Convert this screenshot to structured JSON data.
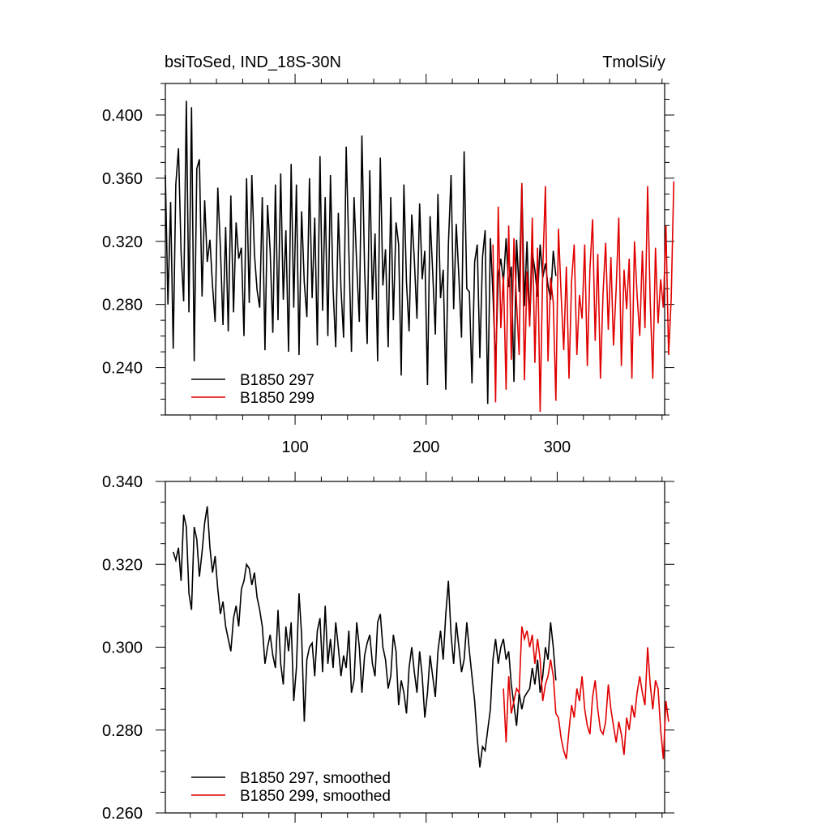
{
  "chart_data": [
    {
      "type": "line",
      "title": "bsiToSed, IND_18S-30N",
      "units_label": "TmolSi/y",
      "xlabel": "",
      "ylabel": "",
      "xlim": [
        1,
        382
      ],
      "ylim": [
        0.21,
        0.42
      ],
      "xticks": [
        100,
        200,
        300
      ],
      "yticks": [
        0.24,
        0.28,
        0.32,
        0.36,
        0.4
      ],
      "ytick_labels": [
        "0.240",
        "0.280",
        "0.320",
        "0.360",
        "0.400"
      ],
      "xtick_labels": [
        "100",
        "200",
        "300"
      ],
      "legend_position": "bottom-left",
      "series": [
        {
          "name": "B1850 297",
          "color": "#000000",
          "x_start": 1,
          "x_step": 2,
          "values": [
            0.362,
            0.28,
            0.345,
            0.252,
            0.356,
            0.379,
            0.313,
            0.282,
            0.409,
            0.275,
            0.405,
            0.244,
            0.366,
            0.372,
            0.285,
            0.346,
            0.307,
            0.321,
            0.292,
            0.269,
            0.354,
            0.316,
            0.267,
            0.329,
            0.263,
            0.349,
            0.275,
            0.332,
            0.309,
            0.316,
            0.26,
            0.36,
            0.281,
            0.362,
            0.312,
            0.289,
            0.278,
            0.348,
            0.251,
            0.343,
            0.314,
            0.262,
            0.356,
            0.27,
            0.363,
            0.283,
            0.327,
            0.25,
            0.369,
            0.278,
            0.356,
            0.248,
            0.339,
            0.294,
            0.272,
            0.36,
            0.284,
            0.335,
            0.254,
            0.374,
            0.276,
            0.348,
            0.26,
            0.362,
            0.289,
            0.253,
            0.338,
            0.29,
            0.259,
            0.38,
            0.314,
            0.25,
            0.348,
            0.305,
            0.269,
            0.387,
            0.303,
            0.255,
            0.365,
            0.283,
            0.325,
            0.244,
            0.373,
            0.292,
            0.315,
            0.253,
            0.348,
            0.27,
            0.332,
            0.318,
            0.235,
            0.356,
            0.294,
            0.263,
            0.337,
            0.308,
            0.271,
            0.344,
            0.296,
            0.314,
            0.229,
            0.336,
            0.301,
            0.261,
            0.35,
            0.284,
            0.302,
            0.226,
            0.318,
            0.362,
            0.277,
            0.331,
            0.297,
            0.259,
            0.377,
            0.29,
            0.288,
            0.23,
            0.307,
            0.318,
            0.246,
            0.31,
            0.327,
            0.217,
            0.322,
            0.286,
            0.241,
            0.298,
            0.309,
            0.294,
            0.322,
            0.291,
            0.304,
            0.231,
            0.321,
            0.288,
            0.356,
            0.279,
            0.32,
            0.268,
            0.313,
            0.302,
            0.285,
            0.318,
            0.297,
            0.306,
            0.292,
            0.283,
            0.314,
            0.298
          ]
        },
        {
          "name": "B1850 299",
          "color": "#e00000",
          "x_start": 251,
          "x_step": 2,
          "values": [
            0.318,
            0.218,
            0.342,
            0.265,
            0.298,
            0.226,
            0.33,
            0.245,
            0.322,
            0.281,
            0.248,
            0.357,
            0.232,
            0.301,
            0.266,
            0.335,
            0.243,
            0.316,
            0.212,
            0.302,
            0.355,
            0.244,
            0.297,
            0.281,
            0.219,
            0.328,
            0.286,
            0.251,
            0.304,
            0.233,
            0.295,
            0.318,
            0.248,
            0.286,
            0.271,
            0.318,
            0.241,
            0.302,
            0.334,
            0.257,
            0.312,
            0.233,
            0.287,
            0.319,
            0.264,
            0.31,
            0.254,
            0.29,
            0.335,
            0.241,
            0.302,
            0.277,
            0.309,
            0.233,
            0.32,
            0.286,
            0.26,
            0.314,
            0.265,
            0.355,
            0.282,
            0.233,
            0.316,
            0.268,
            0.296,
            0.278,
            0.33,
            0.248,
            0.284,
            0.358
          ]
        }
      ]
    },
    {
      "type": "line",
      "title": "",
      "xlabel": "",
      "ylabel": "",
      "xlim": [
        1,
        382
      ],
      "ylim": [
        0.26,
        0.34
      ],
      "xticks": [
        100,
        200,
        300
      ],
      "yticks": [
        0.26,
        0.28,
        0.3,
        0.32,
        0.34
      ],
      "ytick_labels": [
        "0.260",
        "0.280",
        "0.300",
        "0.320",
        "0.340"
      ],
      "legend_position": "bottom-left",
      "series": [
        {
          "name": "B1850 297, smoothed",
          "color": "#000000",
          "x_start": 7,
          "x_step": 2,
          "values": [
            0.323,
            0.321,
            0.324,
            0.316,
            0.332,
            0.329,
            0.313,
            0.309,
            0.329,
            0.326,
            0.317,
            0.323,
            0.33,
            0.334,
            0.324,
            0.318,
            0.322,
            0.314,
            0.308,
            0.311,
            0.305,
            0.302,
            0.299,
            0.307,
            0.31,
            0.305,
            0.314,
            0.316,
            0.32,
            0.319,
            0.315,
            0.318,
            0.312,
            0.309,
            0.305,
            0.296,
            0.3,
            0.303,
            0.298,
            0.295,
            0.309,
            0.296,
            0.291,
            0.305,
            0.299,
            0.306,
            0.287,
            0.295,
            0.313,
            0.303,
            0.282,
            0.297,
            0.3,
            0.301,
            0.293,
            0.304,
            0.307,
            0.294,
            0.31,
            0.296,
            0.302,
            0.295,
            0.306,
            0.3,
            0.293,
            0.298,
            0.295,
            0.304,
            0.289,
            0.292,
            0.306,
            0.3,
            0.289,
            0.298,
            0.301,
            0.303,
            0.296,
            0.293,
            0.306,
            0.308,
            0.3,
            0.297,
            0.29,
            0.293,
            0.303,
            0.299,
            0.286,
            0.292,
            0.289,
            0.284,
            0.295,
            0.3,
            0.294,
            0.289,
            0.299,
            0.293,
            0.283,
            0.289,
            0.298,
            0.293,
            0.288,
            0.299,
            0.304,
            0.297,
            0.308,
            0.316,
            0.303,
            0.296,
            0.306,
            0.3,
            0.294,
            0.297,
            0.306,
            0.299,
            0.293,
            0.287,
            0.278,
            0.271,
            0.276,
            0.275,
            0.28,
            0.285,
            0.297,
            0.302,
            0.296,
            0.3,
            0.302,
            0.297,
            0.299,
            0.291,
            0.286,
            0.281,
            0.289,
            0.285,
            0.288,
            0.289,
            0.29,
            0.295,
            0.291,
            0.297,
            0.289,
            0.293,
            0.3,
            0.297,
            0.306,
            0.3,
            0.292
          ]
        },
        {
          "name": "B1850 299, smoothed",
          "color": "#e00000",
          "x_start": 259,
          "x_step": 2,
          "values": [
            0.29,
            0.277,
            0.293,
            0.284,
            0.287,
            0.29,
            0.289,
            0.305,
            0.302,
            0.304,
            0.3,
            0.303,
            0.296,
            0.302,
            0.297,
            0.287,
            0.291,
            0.293,
            0.297,
            0.293,
            0.284,
            0.283,
            0.278,
            0.275,
            0.273,
            0.28,
            0.286,
            0.283,
            0.29,
            0.287,
            0.293,
            0.285,
            0.281,
            0.279,
            0.288,
            0.292,
            0.285,
            0.28,
            0.279,
            0.282,
            0.291,
            0.285,
            0.281,
            0.277,
            0.282,
            0.279,
            0.274,
            0.283,
            0.28,
            0.286,
            0.283,
            0.289,
            0.293,
            0.289,
            0.286,
            0.3,
            0.291,
            0.285,
            0.292,
            0.29,
            0.28,
            0.273,
            0.287,
            0.282
          ]
        }
      ]
    }
  ]
}
